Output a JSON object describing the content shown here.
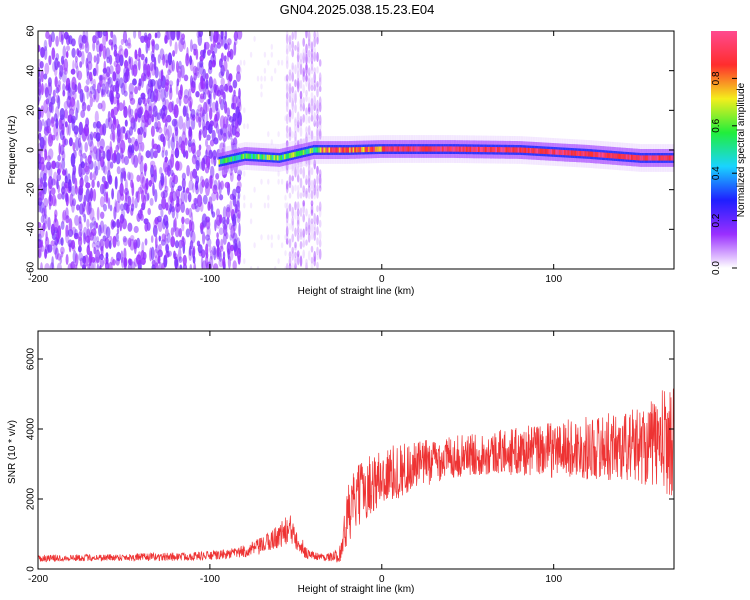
{
  "title": "GN04.2025.038.15.23.E04",
  "colors": {
    "snr_line": "#ee3333",
    "colorbar_stops": [
      "#ffffff",
      "#9a2fff",
      "#1f1fff",
      "#19d4ff",
      "#21ee3b",
      "#f4ee1c",
      "#ff2d2d",
      "#ff4a8f"
    ]
  },
  "chart_data": [
    {
      "type": "heatmap",
      "title": "",
      "xlabel": "Height of straight line (km)",
      "ylabel": "Frequency (Hz)",
      "xlim": [
        -200,
        170
      ],
      "ylim": [
        -60,
        60
      ],
      "x_ticks": [
        -200,
        -100,
        0,
        100
      ],
      "y_ticks": [
        60,
        40,
        20,
        0,
        -20,
        -40,
        -60
      ],
      "grid": false,
      "colorbar": {
        "label": "Normalized spectral amplitude",
        "range": [
          0,
          1
        ],
        "ticks": [
          0.0,
          0.2,
          0.4,
          0.6,
          0.8
        ]
      },
      "features": [
        {
          "name": "broadband noise region",
          "x_range": [
            -200,
            -82
          ],
          "amplitude": 0.2
        },
        {
          "name": "noise band",
          "x_range": [
            -55,
            -35
          ],
          "amplitude": 0.1
        },
        {
          "name": "signal trace",
          "points": [
            [
              -95,
              -6
            ],
            [
              -80,
              -3
            ],
            [
              -60,
              -4
            ],
            [
              -40,
              0
            ],
            [
              -20,
              0
            ],
            [
              0,
              0.5
            ],
            [
              40,
              0.5
            ],
            [
              80,
              0
            ],
            [
              120,
              -2
            ],
            [
              150,
              -4
            ],
            [
              170,
              -4
            ]
          ],
          "peak_amplitude": 1.0
        }
      ]
    },
    {
      "type": "line",
      "title": "",
      "xlabel": "Height of straight line (km)",
      "ylabel": "SNR (10 * v/v)",
      "xlim": [
        -200,
        170
      ],
      "ylim": [
        0,
        6800
      ],
      "x_ticks": [
        -200,
        -100,
        0,
        100
      ],
      "y_ticks": [
        0,
        2000,
        4000,
        6000
      ],
      "grid": false,
      "series": [
        {
          "x": [
            -200,
            -180,
            -160,
            -140,
            -120,
            -100,
            -90,
            -80,
            -70,
            -60,
            -55,
            -50,
            -45,
            -40,
            -35,
            -30,
            -25,
            -22,
            -20,
            -15,
            -10,
            0,
            10,
            20,
            30,
            40,
            50,
            60,
            70,
            80,
            90,
            100,
            110,
            120,
            130,
            140,
            150,
            160,
            165,
            170
          ],
          "y": [
            300,
            320,
            330,
            340,
            350,
            380,
            420,
            500,
            650,
            950,
            1100,
            1050,
            500,
            380,
            350,
            340,
            380,
            900,
            1500,
            2000,
            2300,
            2600,
            2800,
            2950,
            3100,
            3200,
            3250,
            3300,
            3350,
            3350,
            3400,
            3400,
            3450,
            3450,
            3500,
            3500,
            3550,
            3600,
            3650,
            3700
          ],
          "amplitude": [
            100,
            100,
            100,
            110,
            120,
            130,
            140,
            180,
            250,
            350,
            450,
            500,
            200,
            120,
            110,
            120,
            200,
            600,
            900,
            900,
            900,
            850,
            800,
            700,
            650,
            600,
            600,
            600,
            650,
            700,
            750,
            800,
            850,
            900,
            950,
            1000,
            1100,
            1300,
            1600,
            1600
          ]
        }
      ]
    }
  ]
}
